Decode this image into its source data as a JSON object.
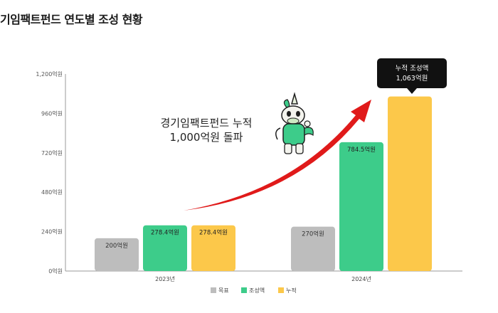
{
  "title": "기임팩트펀드 연도별 조성 현황",
  "annotation": {
    "line1": "경기임팩트펀드 누적",
    "line2": "1,000억원 돌파"
  },
  "tooltip": {
    "line1": "누적 조성액",
    "line2": "1,063억원"
  },
  "colors": {
    "목표": "#bdbdbd",
    "조성액": "#3dcc8a",
    "누적": "#fcc84a",
    "tooltip": "#111111",
    "arrow": "#e01a1a"
  },
  "chart_data": {
    "type": "bar",
    "categories": [
      "2023년",
      "2024년"
    ],
    "series": [
      {
        "name": "목표",
        "values": [
          200,
          270
        ],
        "labels": [
          "200억원",
          "270억원"
        ]
      },
      {
        "name": "조성액",
        "values": [
          278.4,
          784.5
        ],
        "labels": [
          "278.4억원",
          "784.5억원"
        ]
      },
      {
        "name": "누적",
        "values": [
          278.4,
          1063
        ],
        "labels": [
          "278.4억원",
          ""
        ]
      }
    ],
    "ylim": [
      0,
      1200
    ],
    "yticks": [
      0,
      240,
      480,
      720,
      960,
      1200
    ],
    "ytick_labels": [
      "0억원",
      "240억원",
      "480억원",
      "720억원",
      "960억원",
      "1,200억원"
    ],
    "grid": false,
    "legend_position": "bottom-center"
  }
}
